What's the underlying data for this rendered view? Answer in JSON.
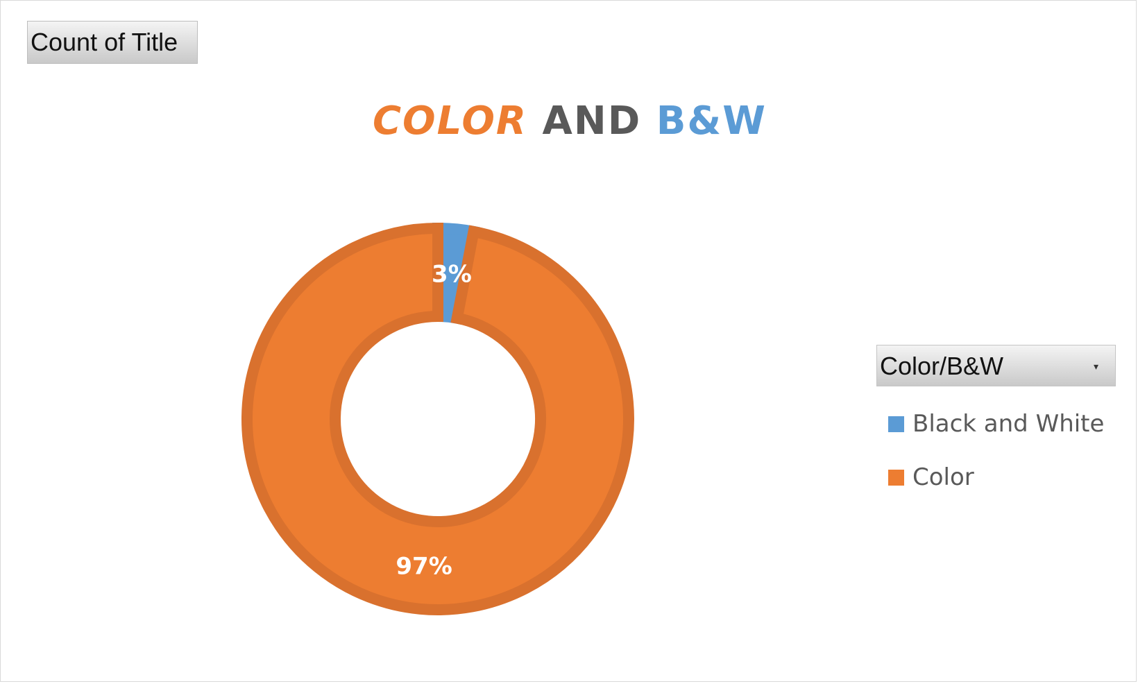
{
  "field_button": {
    "label": "Count of Title"
  },
  "title": {
    "part1": "COLOR",
    "part2": " AND ",
    "part3": "B&W",
    "color1": "#ED7D31",
    "color2": "#595959",
    "color3": "#5B9BD5"
  },
  "legend": {
    "filter_label": "Color/B&W",
    "filter_arrow": "▾",
    "items": [
      {
        "label": "Black and White",
        "color": "#5B9BD5"
      },
      {
        "label": "Color",
        "color": "#ED7D31"
      }
    ]
  },
  "chart_data": {
    "type": "pie",
    "variant": "doughnut",
    "title": "COLOR AND B&W",
    "legend_title": "Color/B&W",
    "legend_position": "right",
    "categories": [
      "Black and White",
      "Color"
    ],
    "values": [
      3,
      97
    ],
    "value_unit": "%",
    "data_labels": [
      "3%",
      "97%"
    ],
    "colors": [
      "#5B9BD5",
      "#ED7D31"
    ],
    "border_colors": [
      "#5B9BD5",
      "#D9712E"
    ],
    "label_color": "#FFFFFF"
  }
}
